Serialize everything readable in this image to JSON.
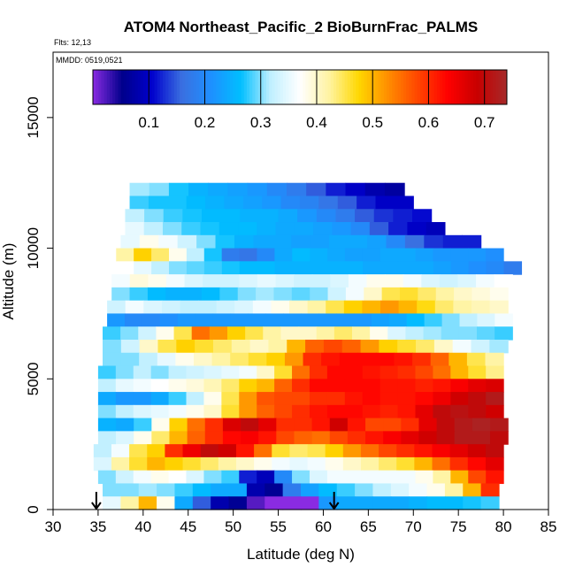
{
  "chart_data": {
    "type": "heatmap",
    "title": "ATOM4 Northeast_Pacific_2 BioBurnFrac_PALMS",
    "annotation_flights": "Flts: 12,13",
    "annotation_dates": "MMDD: 0519,0521",
    "xlabel": "Latitude (deg N)",
    "ylabel": "Altitude (m)",
    "xlim": [
      30,
      85
    ],
    "ylim": [
      0,
      17500
    ],
    "x_ticks": [
      30,
      35,
      40,
      45,
      50,
      55,
      60,
      65,
      70,
      75,
      80,
      85
    ],
    "y_ticks": [
      0,
      5000,
      10000,
      15000
    ],
    "x_tick_labels": [
      "30",
      "35",
      "40",
      "45",
      "50",
      "55",
      "60",
      "65",
      "70",
      "75",
      "80",
      "85"
    ],
    "y_tick_labels": [
      "0",
      "5000",
      "10000",
      "15000"
    ],
    "colorbar": {
      "range": [
        0,
        0.74
      ],
      "ticks": [
        0.1,
        0.2,
        0.3,
        0.4,
        0.5,
        0.6,
        0.7
      ],
      "tick_labels": [
        "0.1",
        "0.2",
        "0.3",
        "0.4",
        "0.5",
        "0.6",
        "0.7"
      ],
      "colors": [
        "#8a2be2",
        "#00008b",
        "#0000cd",
        "#3a6fe0",
        "#1e90ff",
        "#00bfff",
        "#bfefff",
        "#ffffff",
        "#fff3a0",
        "#ffd700",
        "#ff8c00",
        "#ff4500",
        "#ff0000",
        "#c80000",
        "#a52a2a"
      ]
    },
    "arrows_latitude": [
      34.8,
      61.2
    ],
    "bands": [
      {
        "alt_bottom": 12000,
        "alt_top": 12500,
        "lat_start": 38.5,
        "lat_end": 69.0,
        "values": [
          0.31,
          0.3,
          0.27,
          0.25,
          0.24,
          0.23,
          0.22,
          0.2,
          0.18,
          0.15,
          0.12,
          0.1,
          0.08,
          0.07
        ]
      },
      {
        "alt_bottom": 11500,
        "alt_top": 12000,
        "lat_start": 38.5,
        "lat_end": 70.0,
        "values": [
          0.28,
          0.27,
          0.27,
          0.26,
          0.25,
          0.24,
          0.23,
          0.22,
          0.2,
          0.19,
          0.17,
          0.15,
          0.12,
          0.1,
          0.1
        ]
      },
      {
        "alt_bottom": 11000,
        "alt_top": 11500,
        "lat_start": 38.0,
        "lat_end": 72.0,
        "values": [
          0.32,
          0.3,
          0.28,
          0.27,
          0.26,
          0.26,
          0.25,
          0.25,
          0.24,
          0.22,
          0.2,
          0.18,
          0.15,
          0.13,
          0.12,
          0.11
        ]
      },
      {
        "alt_bottom": 10500,
        "alt_top": 11000,
        "lat_start": 38.0,
        "lat_end": 73.5,
        "values": [
          0.35,
          0.32,
          0.3,
          0.28,
          0.27,
          0.26,
          0.26,
          0.25,
          0.24,
          0.24,
          0.23,
          0.22,
          0.2,
          0.15,
          0.12,
          0.1,
          0.09
        ]
      },
      {
        "alt_bottom": 10000,
        "alt_top": 10500,
        "lat_start": 37.5,
        "lat_end": 77.5,
        "values": [
          0.35,
          0.38,
          0.36,
          0.33,
          0.3,
          0.27,
          0.25,
          0.24,
          0.24,
          0.23,
          0.23,
          0.24,
          0.24,
          0.23,
          0.2,
          0.16,
          0.13,
          0.12,
          0.12
        ]
      },
      {
        "alt_bottom": 9500,
        "alt_top": 10000,
        "lat_start": 37.0,
        "lat_end": 80.0,
        "values": [
          0.42,
          0.48,
          0.44,
          0.38,
          0.32,
          0.27,
          0.18,
          0.17,
          0.2,
          0.24,
          0.26,
          0.25,
          0.24,
          0.23,
          0.23,
          0.24,
          0.24,
          0.23,
          0.22,
          0.22,
          0.22,
          0.21
        ]
      },
      {
        "alt_bottom": 9000,
        "alt_top": 9500,
        "lat_start": 37.0,
        "lat_end": 82.0,
        "values": [
          0.37,
          0.35,
          0.32,
          0.3,
          0.29,
          0.28,
          0.27,
          0.26,
          0.26,
          0.25,
          0.25,
          0.25,
          0.25,
          0.25,
          0.24,
          0.24,
          0.24,
          0.24,
          0.23,
          0.22,
          0.21,
          0.2,
          0.18
        ]
      },
      {
        "alt_bottom": 8500,
        "alt_top": 9000,
        "lat_start": 36.5,
        "lat_end": 81.0,
        "values": [
          0.36,
          0.39,
          0.38,
          0.36,
          0.34,
          0.33,
          0.33,
          0.34,
          0.35,
          0.34,
          0.33,
          0.33,
          0.34,
          0.36,
          0.38,
          0.38,
          0.36,
          0.34,
          0.33,
          0.34,
          0.36,
          0.37
        ]
      },
      {
        "alt_bottom": 8000,
        "alt_top": 8500,
        "lat_start": 36.5,
        "lat_end": 80.5,
        "values": [
          0.3,
          0.28,
          0.26,
          0.25,
          0.25,
          0.26,
          0.28,
          0.3,
          0.31,
          0.3,
          0.29,
          0.3,
          0.33,
          0.36,
          0.4,
          0.45,
          0.46,
          0.44,
          0.42,
          0.4,
          0.39,
          0.38
        ]
      },
      {
        "alt_bottom": 7500,
        "alt_top": 8000,
        "lat_start": 36.0,
        "lat_end": 80.5,
        "values": [
          0.33,
          0.36,
          0.34,
          0.33,
          0.32,
          0.32,
          0.33,
          0.34,
          0.36,
          0.38,
          0.4,
          0.42,
          0.45,
          0.48,
          0.5,
          0.52,
          0.5,
          0.47,
          0.44,
          0.42,
          0.41,
          0.4
        ]
      },
      {
        "alt_bottom": 7000,
        "alt_top": 7500,
        "lat_start": 36.0,
        "lat_end": 81.0,
        "values": [
          0.22,
          0.2,
          0.2,
          0.21,
          0.22,
          0.22,
          0.22,
          0.22,
          0.22,
          0.22,
          0.22,
          0.22,
          0.22,
          0.22,
          0.22,
          0.23,
          0.24,
          0.26,
          0.28,
          0.3,
          0.32,
          0.34,
          0.36
        ]
      },
      {
        "alt_bottom": 6500,
        "alt_top": 7000,
        "lat_start": 35.5,
        "lat_end": 81.0,
        "values": [
          0.28,
          0.3,
          0.33,
          0.38,
          0.45,
          0.55,
          0.52,
          0.48,
          0.45,
          0.42,
          0.4,
          0.4,
          0.42,
          0.44,
          0.42,
          0.38,
          0.34,
          0.32,
          0.31,
          0.3,
          0.3,
          0.29,
          0.28
        ]
      },
      {
        "alt_bottom": 6000,
        "alt_top": 6500,
        "lat_start": 35.5,
        "lat_end": 80.5,
        "values": [
          0.3,
          0.33,
          0.4,
          0.45,
          0.48,
          0.46,
          0.44,
          0.42,
          0.4,
          0.42,
          0.5,
          0.56,
          0.58,
          0.56,
          0.52,
          0.48,
          0.46,
          0.44,
          0.4,
          0.36,
          0.33,
          0.31
        ]
      },
      {
        "alt_bottom": 5500,
        "alt_top": 6000,
        "lat_start": 35.5,
        "lat_end": 80.0,
        "values": [
          0.3,
          0.3,
          0.32,
          0.35,
          0.38,
          0.4,
          0.42,
          0.44,
          0.46,
          0.48,
          0.52,
          0.6,
          0.62,
          0.63,
          0.63,
          0.63,
          0.62,
          0.6,
          0.56,
          0.5,
          0.45,
          0.42
        ]
      },
      {
        "alt_bottom": 5000,
        "alt_top": 5500,
        "lat_start": 35.0,
        "lat_end": 80.0,
        "values": [
          0.28,
          0.3,
          0.32,
          0.3,
          0.32,
          0.33,
          0.34,
          0.35,
          0.36,
          0.4,
          0.46,
          0.55,
          0.6,
          0.63,
          0.63,
          0.62,
          0.61,
          0.6,
          0.58,
          0.55,
          0.5,
          0.46,
          0.43
        ]
      },
      {
        "alt_bottom": 4500,
        "alt_top": 5000,
        "lat_start": 35.0,
        "lat_end": 80.0,
        "values": [
          0.32,
          0.35,
          0.36,
          0.37,
          0.38,
          0.39,
          0.41,
          0.44,
          0.48,
          0.5,
          0.56,
          0.6,
          0.63,
          0.63,
          0.63,
          0.63,
          0.62,
          0.62,
          0.61,
          0.62,
          0.64,
          0.66,
          0.67
        ]
      },
      {
        "alt_bottom": 4000,
        "alt_top": 4500,
        "lat_start": 35.0,
        "lat_end": 80.0,
        "values": [
          0.24,
          0.22,
          0.22,
          0.24,
          0.28,
          0.32,
          0.38,
          0.45,
          0.52,
          0.57,
          0.58,
          0.58,
          0.6,
          0.6,
          0.62,
          0.63,
          0.62,
          0.62,
          0.63,
          0.65,
          0.68,
          0.7,
          0.72
        ]
      },
      {
        "alt_bottom": 3500,
        "alt_top": 4000,
        "lat_start": 35.0,
        "lat_end": 80.0,
        "values": [
          0.3,
          0.32,
          0.34,
          0.35,
          0.36,
          0.38,
          0.4,
          0.46,
          0.52,
          0.56,
          0.58,
          0.6,
          0.62,
          0.63,
          0.63,
          0.62,
          0.61,
          0.62,
          0.66,
          0.7,
          0.71,
          0.7,
          0.68
        ]
      },
      {
        "alt_bottom": 3000,
        "alt_top": 3500,
        "lat_start": 35.0,
        "lat_end": 80.5,
        "values": [
          0.25,
          0.24,
          0.28,
          0.38,
          0.48,
          0.55,
          0.6,
          0.67,
          0.7,
          0.66,
          0.6,
          0.6,
          0.62,
          0.68,
          0.62,
          0.58,
          0.58,
          0.6,
          0.66,
          0.7,
          0.72,
          0.73,
          0.72
        ]
      },
      {
        "alt_bottom": 2500,
        "alt_top": 3000,
        "lat_start": 35.0,
        "lat_end": 80.5,
        "values": [
          0.32,
          0.34,
          0.38,
          0.44,
          0.5,
          0.56,
          0.6,
          0.63,
          0.64,
          0.62,
          0.58,
          0.56,
          0.55,
          0.58,
          0.6,
          0.62,
          0.64,
          0.66,
          0.68,
          0.7,
          0.72,
          0.72,
          0.7
        ]
      },
      {
        "alt_bottom": 2000,
        "alt_top": 2500,
        "lat_start": 34.5,
        "lat_end": 80.0,
        "values": [
          0.32,
          0.36,
          0.45,
          0.48,
          0.6,
          0.65,
          0.7,
          0.68,
          0.62,
          0.55,
          0.46,
          0.44,
          0.45,
          0.48,
          0.52,
          0.55,
          0.58,
          0.6,
          0.62,
          0.64,
          0.66,
          0.68,
          0.7
        ]
      },
      {
        "alt_bottom": 1500,
        "alt_top": 2000,
        "lat_start": 34.5,
        "lat_end": 80.0,
        "values": [
          0.34,
          0.42,
          0.46,
          0.5,
          0.48,
          0.46,
          0.44,
          0.42,
          0.4,
          0.38,
          0.36,
          0.35,
          0.36,
          0.38,
          0.4,
          0.42,
          0.44,
          0.46,
          0.5,
          0.55,
          0.6,
          0.63,
          0.66
        ]
      },
      {
        "alt_bottom": 1000,
        "alt_top": 1500,
        "lat_start": 35.0,
        "lat_end": 80.0,
        "values": [
          0.3,
          0.33,
          0.36,
          0.38,
          0.37,
          0.34,
          0.3,
          0.28,
          0.12,
          0.09,
          0.2,
          0.3,
          0.34,
          0.36,
          0.36,
          0.36,
          0.36,
          0.36,
          0.38,
          0.42,
          0.5,
          0.58,
          0.62
        ]
      },
      {
        "alt_bottom": 500,
        "alt_top": 1000,
        "lat_start": 35.5,
        "lat_end": 79.5,
        "values": [
          0.3,
          0.3,
          0.31,
          0.3,
          0.28,
          0.26,
          0.24,
          0.24,
          0.08,
          0.06,
          0.18,
          0.23,
          0.26,
          0.28,
          0.3,
          0.32,
          0.34,
          0.36,
          0.38,
          0.42,
          0.5,
          0.6
        ]
      },
      {
        "alt_bottom": 0,
        "alt_top": 500,
        "lat_start": 35.5,
        "lat_end": 79.5,
        "values": [
          0.35,
          0.42,
          0.5,
          0.38,
          0.24,
          0.15,
          0.08,
          0.06,
          0.02,
          0.0,
          0.0,
          0.0,
          0.22,
          0.24,
          0.24,
          0.24,
          0.24,
          0.25,
          0.26,
          0.26,
          0.27,
          0.28
        ]
      }
    ]
  }
}
